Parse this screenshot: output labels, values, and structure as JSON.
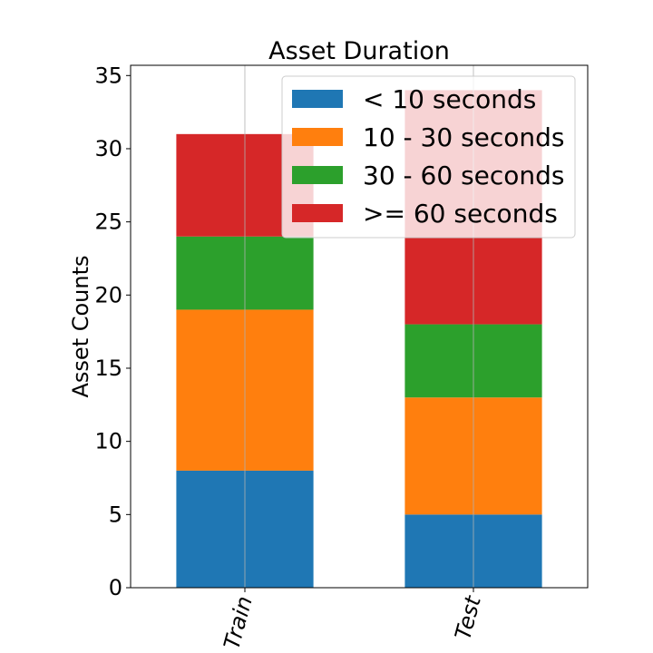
{
  "chart_data": {
    "type": "bar",
    "stacked": true,
    "title": "Asset Duration",
    "xlabel": "",
    "ylabel": "Asset Counts",
    "categories": [
      "Train",
      "Test"
    ],
    "series": [
      {
        "name": "< 10 seconds",
        "values": [
          8,
          5
        ],
        "color": "#1f77b4"
      },
      {
        "name": "10 - 30 seconds",
        "values": [
          11,
          8
        ],
        "color": "#ff7f0e"
      },
      {
        "name": "30 - 60 seconds",
        "values": [
          5,
          5
        ],
        "color": "#2ca02c"
      },
      {
        "name": ">= 60 seconds",
        "values": [
          7,
          16
        ],
        "color": "#d62728"
      }
    ],
    "ylim": [
      0,
      35.7
    ],
    "yticks": [
      0,
      5,
      10,
      15,
      20,
      25,
      30,
      35
    ],
    "xtick_rotation_deg": 75,
    "grid": "vertical",
    "legend_position": "top-right"
  }
}
